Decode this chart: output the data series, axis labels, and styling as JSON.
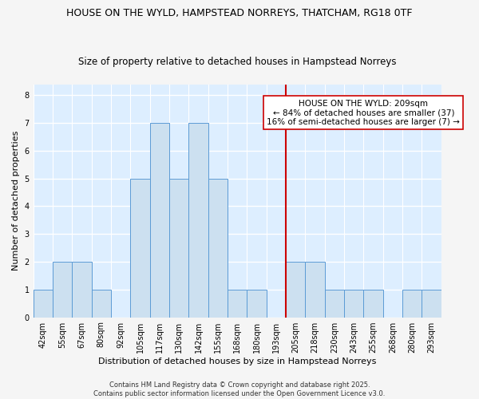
{
  "title_line1": "HOUSE ON THE WYLD, HAMPSTEAD NORREYS, THATCHAM, RG18 0TF",
  "title_line2": "Size of property relative to detached houses in Hampstead Norreys",
  "xlabel": "Distribution of detached houses by size in Hampstead Norreys",
  "ylabel": "Number of detached properties",
  "categories": [
    "42sqm",
    "55sqm",
    "67sqm",
    "80sqm",
    "92sqm",
    "105sqm",
    "117sqm",
    "130sqm",
    "142sqm",
    "155sqm",
    "168sqm",
    "180sqm",
    "193sqm",
    "205sqm",
    "218sqm",
    "230sqm",
    "243sqm",
    "255sqm",
    "268sqm",
    "280sqm",
    "293sqm"
  ],
  "values": [
    1,
    2,
    2,
    1,
    0,
    5,
    7,
    5,
    7,
    5,
    1,
    1,
    0,
    2,
    2,
    1,
    1,
    1,
    0,
    1,
    1
  ],
  "bar_color": "#cce0f0",
  "bar_edge_color": "#5b9bd5",
  "vline_color": "#cc0000",
  "annotation_text": "HOUSE ON THE WYLD: 209sqm\n← 84% of detached houses are smaller (37)\n16% of semi-detached houses are larger (7) →",
  "ylim": [
    0,
    8.4
  ],
  "yticks": [
    0,
    1,
    2,
    3,
    4,
    5,
    6,
    7,
    8
  ],
  "plot_bg_color": "#ddeeff",
  "fig_bg_color": "#f5f5f5",
  "grid_color": "#ffffff",
  "title_fontsize": 9,
  "subtitle_fontsize": 8.5,
  "axis_label_fontsize": 8,
  "tick_fontsize": 7,
  "annotation_fontsize": 7.5,
  "footer_text": "Contains HM Land Registry data © Crown copyright and database right 2025.\nContains public sector information licensed under the Open Government Licence v3.0.",
  "footer_fontsize": 6
}
